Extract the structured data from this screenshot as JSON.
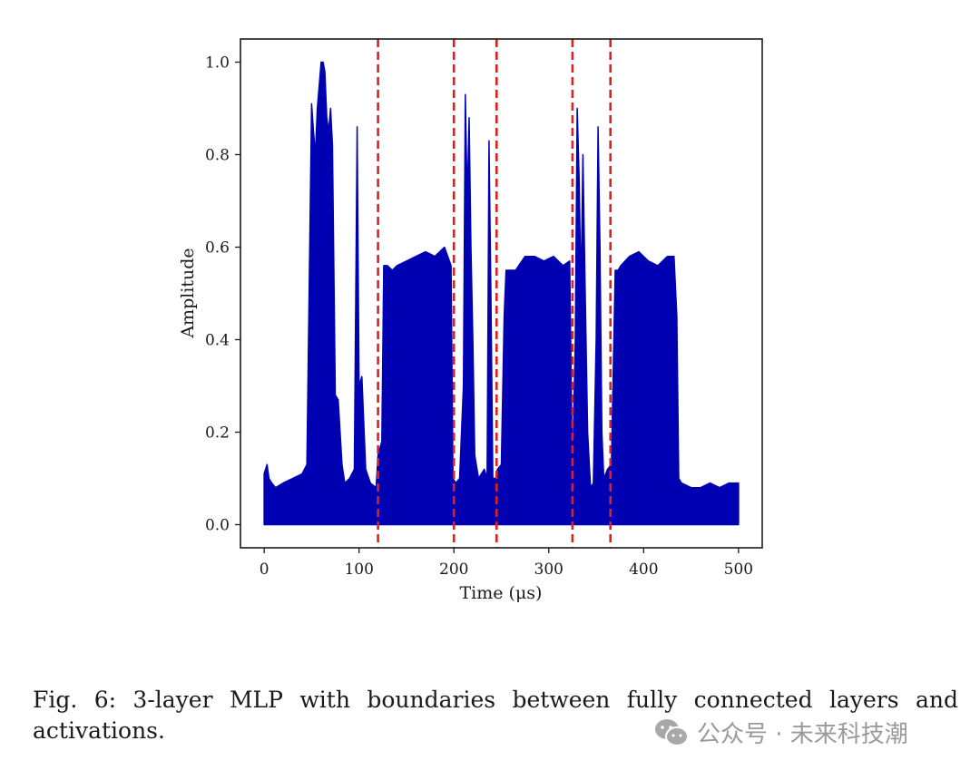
{
  "chart_data": {
    "type": "line",
    "xlabel": "Time (μs)",
    "ylabel": "Amplitude",
    "xlim": [
      -25,
      525
    ],
    "ylim": [
      -0.05,
      1.05
    ],
    "xticks": [
      0,
      100,
      200,
      300,
      400,
      500
    ],
    "yticks": [
      0.0,
      0.2,
      0.4,
      0.6,
      0.8,
      1.0
    ],
    "xtick_labels": [
      "0",
      "100",
      "200",
      "300",
      "400",
      "500"
    ],
    "ytick_labels": [
      "0.0",
      "0.2",
      "0.4",
      "0.6",
      "0.8",
      "1.0"
    ],
    "grid": false,
    "series": [
      {
        "color": "#0000b3",
        "envelope_x": [
          0,
          3,
          5,
          8,
          12,
          20,
          30,
          40,
          45,
          50,
          52,
          54,
          56,
          58,
          60,
          62,
          64,
          66,
          68,
          70,
          72,
          75,
          78,
          82,
          85,
          90,
          95,
          98,
          100,
          103,
          107,
          112,
          118,
          120,
          124,
          126,
          130,
          135,
          140,
          150,
          160,
          170,
          180,
          190,
          197,
          199,
          202,
          206,
          210,
          212,
          214,
          216,
          218,
          220,
          222,
          226,
          232,
          235,
          237,
          239,
          241,
          244,
          246,
          250,
          253,
          255,
          258,
          265,
          275,
          285,
          295,
          305,
          315,
          322,
          325,
          328,
          330,
          332,
          334,
          336,
          338,
          341,
          344,
          347,
          350,
          352,
          354,
          356,
          358,
          362,
          366,
          370,
          373,
          376,
          385,
          395,
          405,
          415,
          425,
          432,
          435,
          437,
          440,
          450,
          460,
          470,
          480,
          490,
          500
        ],
        "envelope_y": [
          0.11,
          0.13,
          0.1,
          0.09,
          0.08,
          0.09,
          0.1,
          0.11,
          0.13,
          0.91,
          0.85,
          0.8,
          0.9,
          0.95,
          1.0,
          1.0,
          0.98,
          0.88,
          0.85,
          0.9,
          0.82,
          0.28,
          0.27,
          0.13,
          0.09,
          0.1,
          0.12,
          0.86,
          0.3,
          0.32,
          0.12,
          0.09,
          0.08,
          0.15,
          0.18,
          0.56,
          0.56,
          0.55,
          0.56,
          0.57,
          0.58,
          0.59,
          0.58,
          0.6,
          0.56,
          0.1,
          0.09,
          0.1,
          0.3,
          0.93,
          0.7,
          0.88,
          0.6,
          0.4,
          0.15,
          0.1,
          0.12,
          0.1,
          0.83,
          0.5,
          0.1,
          0.1,
          0.12,
          0.13,
          0.45,
          0.55,
          0.55,
          0.55,
          0.58,
          0.58,
          0.57,
          0.58,
          0.56,
          0.57,
          0.1,
          0.4,
          0.9,
          0.75,
          0.5,
          0.8,
          0.55,
          0.2,
          0.08,
          0.09,
          0.4,
          0.86,
          0.6,
          0.2,
          0.1,
          0.12,
          0.13,
          0.55,
          0.55,
          0.56,
          0.58,
          0.59,
          0.57,
          0.56,
          0.58,
          0.58,
          0.45,
          0.1,
          0.09,
          0.08,
          0.08,
          0.09,
          0.08,
          0.09,
          0.09
        ]
      }
    ],
    "annotations": [
      {
        "type": "vline",
        "x": 120,
        "color": "#e02020",
        "style": "dashed"
      },
      {
        "type": "vline",
        "x": 200,
        "color": "#e02020",
        "style": "dashed"
      },
      {
        "type": "vline",
        "x": 245,
        "color": "#e02020",
        "style": "dashed"
      },
      {
        "type": "vline",
        "x": 325,
        "color": "#e02020",
        "style": "dashed"
      },
      {
        "type": "vline",
        "x": 365,
        "color": "#e02020",
        "style": "dashed"
      }
    ]
  },
  "caption": {
    "text": "Fig. 6: 3-layer MLP with boundaries between fully connected layers and activations."
  },
  "watermark": {
    "text": "公众号 · 未来科技潮",
    "icon": "wechat-icon",
    "color": "#9a9a9a"
  }
}
